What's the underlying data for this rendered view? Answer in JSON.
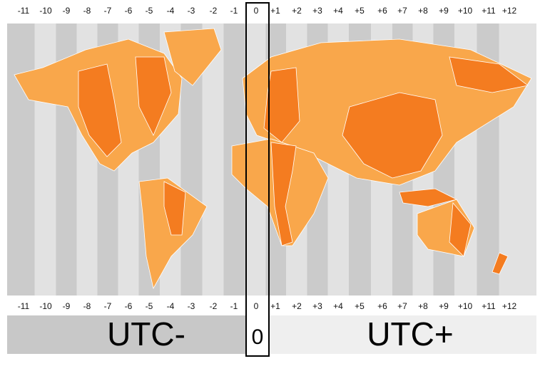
{
  "offsets_top": [
    "-11",
    "-10",
    "-9",
    "-8",
    "-7",
    "-6",
    "-5",
    "-4",
    "-3",
    "-2",
    "-1",
    "0",
    "+1",
    "+2",
    "+3",
    "+4",
    "+5",
    "+6",
    "+7",
    "+8",
    "+9",
    "+10",
    "+11",
    "+12"
  ],
  "offsets_bottom": [
    "-11",
    "-10",
    "-9",
    "-8",
    "-7",
    "-6",
    "-5",
    "-4",
    "-3",
    "-2",
    "-1",
    "0",
    "+1",
    "+2",
    "+3",
    "+4",
    "+5",
    "+6",
    "+7",
    "+8",
    "+9",
    "+10",
    "+11",
    "+12"
  ],
  "footer": {
    "left": "UTC-",
    "zero": "0",
    "right": "UTC+"
  }
}
